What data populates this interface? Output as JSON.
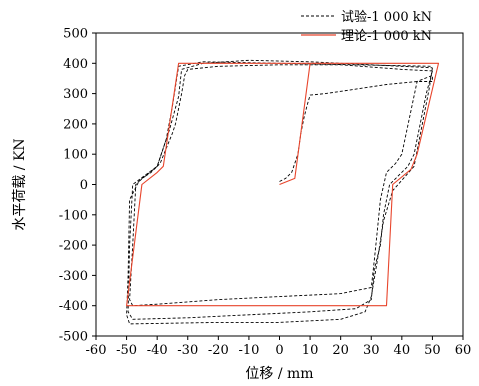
{
  "chart_data": {
    "type": "line",
    "title": "",
    "xlabel": "位移 / mm",
    "ylabel": "水平荷载 / KN",
    "xlim": [
      -60,
      60
    ],
    "ylim": [
      -500,
      500
    ],
    "xticks": [
      -60,
      -50,
      -40,
      -30,
      -20,
      -10,
      0,
      10,
      20,
      30,
      40,
      50,
      60
    ],
    "yticks": [
      500,
      400,
      300,
      200,
      100,
      0,
      -100,
      -200,
      -300,
      -400,
      -500
    ],
    "grid": false,
    "legend_position": "top-right",
    "series": [
      {
        "name": "试验-1 000 kN",
        "style": "dashed",
        "color": "#000000",
        "loops": [
          [
            [
              0,
              10
            ],
            [
              2,
              20
            ],
            [
              4,
              40
            ],
            [
              5,
              70
            ],
            [
              6,
              100
            ],
            [
              7,
              170
            ],
            [
              8,
              220
            ],
            [
              9,
              260
            ],
            [
              10,
              295
            ],
            [
              15,
              300
            ],
            [
              25,
              315
            ],
            [
              35,
              330
            ],
            [
              45,
              340
            ],
            [
              50,
              340
            ],
            [
              50,
              360
            ],
            [
              45,
              340
            ],
            [
              40,
              100
            ],
            [
              38,
              70
            ],
            [
              35,
              40
            ],
            [
              33,
              -50
            ],
            [
              32,
              -150
            ],
            [
              31,
              -250
            ],
            [
              30,
              -340
            ],
            [
              20,
              -360
            ],
            [
              0,
              -370
            ],
            [
              -20,
              -380
            ],
            [
              -40,
              -395
            ],
            [
              -48,
              -400
            ],
            [
              -49,
              -380
            ],
            [
              -48,
              -200
            ],
            [
              -47,
              0
            ],
            [
              -45,
              20
            ],
            [
              -42,
              40
            ],
            [
              -39,
              70
            ],
            [
              -35,
              170
            ],
            [
              -34,
              200
            ],
            [
              -32,
              300
            ],
            [
              -31,
              360
            ],
            [
              -30,
              380
            ],
            [
              -20,
              390
            ],
            [
              0,
              395
            ],
            [
              20,
              395
            ],
            [
              40,
              380
            ],
            [
              50,
              375
            ]
          ],
          [
            [
              50,
              375
            ],
            [
              48,
              300
            ],
            [
              44,
              100
            ],
            [
              42,
              60
            ],
            [
              36,
              0
            ],
            [
              34,
              -100
            ],
            [
              33,
              -200
            ],
            [
              31,
              -280
            ],
            [
              30,
              -380
            ],
            [
              25,
              -410
            ],
            [
              10,
              -420
            ],
            [
              -10,
              -430
            ],
            [
              -30,
              -440
            ],
            [
              -48,
              -445
            ],
            [
              -49.5,
              -420
            ],
            [
              -49,
              -200
            ],
            [
              -48,
              0
            ],
            [
              -44,
              30
            ],
            [
              -40,
              60
            ],
            [
              -36,
              180
            ],
            [
              -33,
              290
            ],
            [
              -32,
              380
            ],
            [
              -25,
              400
            ],
            [
              -10,
              410
            ],
            [
              10,
              405
            ],
            [
              30,
              395
            ],
            [
              50,
              385
            ]
          ],
          [
            [
              50,
              385
            ],
            [
              49,
              320
            ],
            [
              44,
              60
            ],
            [
              37,
              -20
            ],
            [
              34,
              -120
            ],
            [
              32,
              -250
            ],
            [
              30,
              -370
            ],
            [
              28,
              -420
            ],
            [
              20,
              -445
            ],
            [
              0,
              -455
            ],
            [
              -20,
              -455
            ],
            [
              -49,
              -460
            ],
            [
              -50,
              -430
            ],
            [
              -49.5,
              -300
            ],
            [
              -49,
              -50
            ],
            [
              -46,
              10
            ],
            [
              -40,
              60
            ],
            [
              -37,
              150
            ],
            [
              -35,
              260
            ],
            [
              -33,
              390
            ],
            [
              -25,
              405
            ],
            [
              0,
              400
            ],
            [
              25,
              395
            ],
            [
              50,
              390
            ]
          ]
        ]
      },
      {
        "name": "理论-1 000 kN",
        "style": "solid",
        "color": "#e8452c",
        "points": [
          [
            0,
            0
          ],
          [
            5,
            20
          ],
          [
            10,
            400
          ],
          [
            52,
            400
          ],
          [
            45,
            100
          ],
          [
            43,
            50
          ],
          [
            37,
            0
          ],
          [
            35,
            -400
          ],
          [
            -50,
            -400
          ],
          [
            -45,
            0
          ],
          [
            -40,
            40
          ],
          [
            -38,
            60
          ],
          [
            -33,
            400
          ],
          [
            52,
            400
          ]
        ]
      }
    ]
  }
}
